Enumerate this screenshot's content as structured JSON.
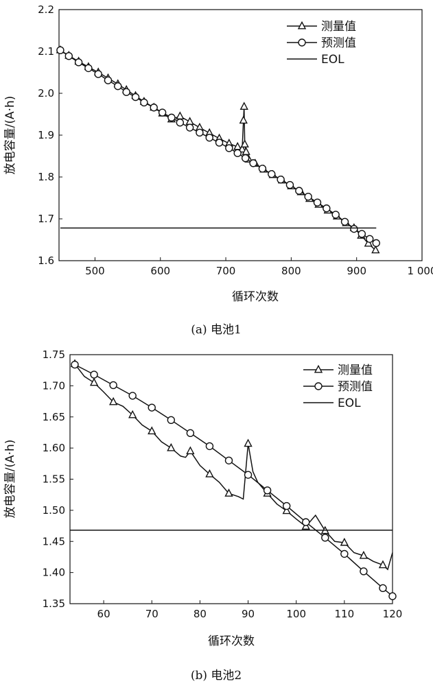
{
  "chart_data": [
    {
      "type": "line",
      "caption": "(a) 电池1",
      "xlabel": "循环次数",
      "ylabel": "放电容量/(A·h)",
      "xlim": [
        445,
        1000
      ],
      "ylim": [
        1.6,
        2.2
      ],
      "xticks": [
        500,
        600,
        700,
        800,
        900,
        1000
      ],
      "xtick_labels": [
        "500",
        "600",
        "700",
        "800",
        "900",
        "1 000"
      ],
      "yticks": [
        1.6,
        1.7,
        1.8,
        1.9,
        2.0,
        2.1,
        2.2
      ],
      "ytick_labels": [
        "1.6",
        "1.7",
        "1.8",
        "1.9",
        "2.0",
        "2.1",
        "2.2"
      ],
      "legend_position": "top-right",
      "legend": [
        "测量值",
        "预测值",
        "EOL"
      ],
      "series": [
        {
          "name": "测量值",
          "marker": "triangle",
          "x": [
            447,
            460,
            475,
            490,
            505,
            520,
            535,
            548,
            562,
            575,
            590,
            603,
            617,
            630,
            645,
            660,
            675,
            690,
            705,
            718,
            725,
            727,
            728,
            729,
            731,
            735,
            745,
            758,
            772,
            786,
            800,
            815,
            828,
            842,
            856,
            870,
            884,
            896,
            907,
            918,
            929
          ],
          "y": [
            2.103,
            2.09,
            2.076,
            2.063,
            2.05,
            2.036,
            2.022,
            2.008,
            1.994,
            1.98,
            1.966,
            1.952,
            1.938,
            1.945,
            1.932,
            1.918,
            1.905,
            1.892,
            1.88,
            1.872,
            1.866,
            1.935,
            1.968,
            1.878,
            1.86,
            1.842,
            1.832,
            1.818,
            1.805,
            1.792,
            1.778,
            1.764,
            1.748,
            1.734,
            1.72,
            1.706,
            1.69,
            1.678,
            1.66,
            1.641,
            1.625
          ]
        },
        {
          "name": "预测值",
          "marker": "circle",
          "x": [
            447,
            460,
            475,
            490,
            505,
            520,
            535,
            548,
            562,
            575,
            590,
            603,
            617,
            630,
            645,
            660,
            675,
            690,
            705,
            718,
            730,
            742,
            756,
            770,
            784,
            798,
            812,
            826,
            840,
            854,
            868,
            882,
            896,
            908,
            920,
            930
          ],
          "y": [
            2.103,
            2.089,
            2.074,
            2.06,
            2.046,
            2.031,
            2.017,
            2.003,
            1.991,
            1.978,
            1.966,
            1.954,
            1.942,
            1.93,
            1.918,
            1.906,
            1.894,
            1.882,
            1.869,
            1.857,
            1.845,
            1.833,
            1.82,
            1.807,
            1.794,
            1.781,
            1.767,
            1.753,
            1.739,
            1.725,
            1.71,
            1.693,
            1.676,
            1.664,
            1.652,
            1.642
          ]
        },
        {
          "name": "EOL",
          "marker": "none",
          "x": [
            447,
            930
          ],
          "y": [
            1.678,
            1.678
          ]
        }
      ]
    },
    {
      "type": "line",
      "caption": "(b) 电池2",
      "xlabel": "循环次数",
      "ylabel": "放电容量/(A·h)",
      "xlim": [
        53,
        120
      ],
      "ylim": [
        1.35,
        1.75
      ],
      "xticks": [
        60,
        70,
        80,
        90,
        100,
        110,
        120
      ],
      "xtick_labels": [
        "60",
        "70",
        "80",
        "90",
        "100",
        "110",
        "120"
      ],
      "yticks": [
        1.35,
        1.4,
        1.45,
        1.5,
        1.55,
        1.6,
        1.65,
        1.7,
        1.75
      ],
      "ytick_labels": [
        "1.35",
        "1.40",
        "1.45",
        "1.50",
        "1.55",
        "1.60",
        "1.65",
        "1.70",
        "1.75"
      ],
      "legend_position": "top-right",
      "legend": [
        "测量值",
        "预测值",
        "EOL"
      ],
      "series": [
        {
          "name": "测量值",
          "marker": "triangle",
          "markers_at": [
            54,
            58,
            62,
            66,
            70,
            74,
            78,
            82,
            86,
            90,
            94,
            98,
            102,
            106,
            110,
            114,
            118
          ],
          "x": [
            54,
            56,
            58,
            60,
            62,
            64,
            66,
            68,
            70,
            72,
            74,
            76,
            77,
            78,
            80,
            82,
            84,
            86,
            88,
            89,
            90,
            91,
            92,
            94,
            96,
            98,
            100,
            102,
            104,
            106,
            108,
            110,
            112,
            114,
            116,
            118,
            119,
            120
          ],
          "y": [
            1.735,
            1.715,
            1.705,
            1.69,
            1.674,
            1.667,
            1.653,
            1.637,
            1.627,
            1.61,
            1.6,
            1.587,
            1.585,
            1.595,
            1.572,
            1.558,
            1.545,
            1.527,
            1.522,
            1.518,
            1.607,
            1.562,
            1.545,
            1.527,
            1.51,
            1.499,
            1.486,
            1.474,
            1.492,
            1.467,
            1.45,
            1.448,
            1.432,
            1.427,
            1.418,
            1.412,
            1.405,
            1.432
          ]
        },
        {
          "name": "预测值",
          "marker": "circle",
          "x": [
            54,
            58,
            62,
            66,
            70,
            74,
            78,
            82,
            86,
            90,
            94,
            98,
            102,
            106,
            110,
            114,
            118,
            120
          ],
          "y": [
            1.734,
            1.718,
            1.701,
            1.684,
            1.665,
            1.645,
            1.624,
            1.603,
            1.58,
            1.557,
            1.532,
            1.507,
            1.481,
            1.456,
            1.43,
            1.402,
            1.375,
            1.362
          ]
        },
        {
          "name": "EOL",
          "marker": "none",
          "x": [
            53,
            120
          ],
          "y": [
            1.468,
            1.468
          ]
        }
      ]
    }
  ]
}
